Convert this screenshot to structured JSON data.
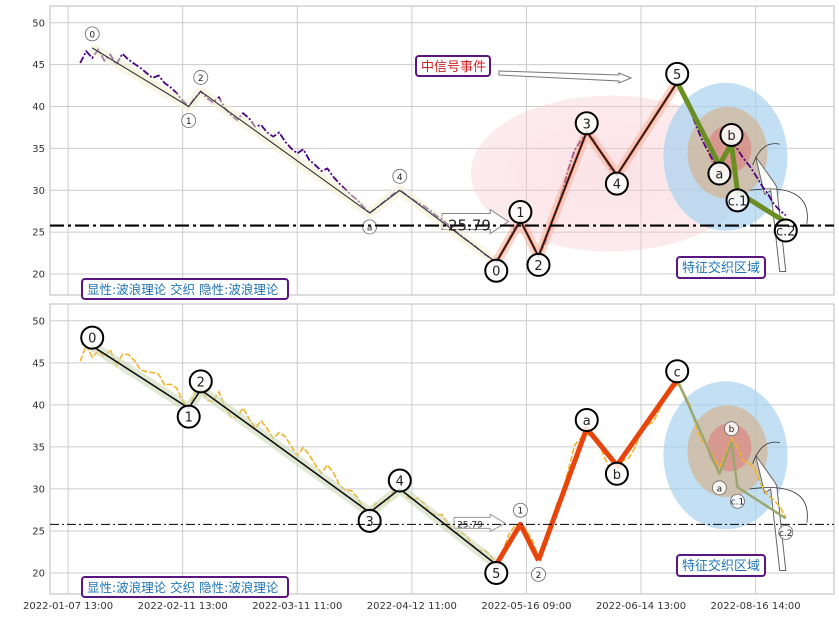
{
  "chart_data": {
    "type": "line",
    "x_tick_labels": [
      "2022-01-07 13:00",
      "2022-02-11 13:00",
      "2022-03-11 11:00",
      "2022-04-12 11:00",
      "2022-05-16 09:00",
      "2022-06-14 13:00",
      "2022-08-16 14:00"
    ],
    "y_ticks": [
      20,
      25,
      30,
      35,
      40,
      45,
      50
    ],
    "ylim": [
      17.5,
      52
    ],
    "grid": true,
    "reference_price": 25.79,
    "reference_price_label": "25.79",
    "panels": [
      {
        "id": "top",
        "legend_text": "显性:波浪理论 交织 隐性:波浪理论",
        "annotation_event": "中信号事件",
        "annotation_zone": "特征交织区域",
        "price_series_color": "#4b0082",
        "price_series": [
          [
            0,
            45.2
          ],
          [
            2,
            46.6
          ],
          [
            4,
            45.8
          ],
          [
            6,
            46.8
          ],
          [
            8,
            45.5
          ],
          [
            10,
            46.2
          ],
          [
            12,
            45.0
          ],
          [
            14,
            46.3
          ],
          [
            16,
            45.6
          ],
          [
            18,
            45.1
          ],
          [
            20,
            44.6
          ],
          [
            22,
            44.0
          ],
          [
            24,
            43.4
          ],
          [
            26,
            43.7
          ],
          [
            28,
            42.8
          ],
          [
            30,
            42.3
          ],
          [
            32,
            41.6
          ],
          [
            34,
            40.7
          ],
          [
            36,
            40.0
          ],
          [
            38,
            41.0
          ],
          [
            40,
            41.8
          ],
          [
            42,
            41.0
          ],
          [
            44,
            40.5
          ],
          [
            46,
            41.1
          ],
          [
            48,
            39.8
          ],
          [
            50,
            39.0
          ],
          [
            52,
            38.4
          ],
          [
            54,
            39.2
          ],
          [
            56,
            38.6
          ],
          [
            58,
            37.6
          ],
          [
            60,
            37.8
          ],
          [
            62,
            36.9
          ],
          [
            64,
            36.4
          ],
          [
            66,
            36.9
          ],
          [
            68,
            35.8
          ],
          [
            70,
            35.0
          ],
          [
            72,
            34.4
          ],
          [
            74,
            34.9
          ],
          [
            76,
            33.6
          ],
          [
            78,
            33.0
          ],
          [
            80,
            32.3
          ],
          [
            82,
            32.6
          ],
          [
            84,
            31.6
          ],
          [
            86,
            30.8
          ],
          [
            88,
            30.1
          ],
          [
            90,
            29.4
          ],
          [
            92,
            28.8
          ],
          [
            94,
            28.0
          ],
          [
            96,
            27.3
          ],
          [
            98,
            27.8
          ],
          [
            100,
            28.4
          ],
          [
            102,
            29.0
          ],
          [
            104,
            29.6
          ],
          [
            106,
            30.0
          ],
          [
            108,
            29.5
          ],
          [
            110,
            29.0
          ],
          [
            112,
            28.5
          ],
          [
            114,
            28.1
          ],
          [
            116,
            27.6
          ],
          [
            118,
            27.0
          ],
          [
            120,
            26.5
          ],
          [
            122,
            25.9
          ],
          [
            124,
            25.3
          ],
          [
            126,
            24.7
          ],
          [
            128,
            24.1
          ],
          [
            130,
            23.6
          ],
          [
            132,
            23.0
          ],
          [
            134,
            22.4
          ],
          [
            136,
            21.9
          ],
          [
            138,
            21.4
          ],
          [
            140,
            22.6
          ],
          [
            142,
            24.0
          ],
          [
            144,
            25.5
          ],
          [
            146,
            26.4
          ],
          [
            148,
            25.0
          ],
          [
            150,
            23.4
          ],
          [
            152,
            22.1
          ],
          [
            154,
            23.5
          ],
          [
            156,
            25.6
          ],
          [
            158,
            27.8
          ],
          [
            160,
            30.0
          ],
          [
            162,
            32.6
          ],
          [
            164,
            34.8
          ],
          [
            166,
            35.9
          ],
          [
            168,
            37.0
          ],
          [
            170,
            36.2
          ],
          [
            172,
            35.0
          ],
          [
            174,
            33.8
          ],
          [
            176,
            32.5
          ],
          [
            178,
            31.8
          ],
          [
            180,
            33.0
          ],
          [
            182,
            34.0
          ],
          [
            184,
            35.2
          ],
          [
            186,
            36.3
          ],
          [
            188,
            37.4
          ],
          [
            190,
            38.4
          ],
          [
            192,
            39.4
          ],
          [
            194,
            40.5
          ],
          [
            196,
            41.7
          ],
          [
            198,
            42.9
          ],
          [
            200,
            41.4
          ],
          [
            202,
            39.8
          ],
          [
            204,
            38.0
          ],
          [
            206,
            36.2
          ],
          [
            208,
            34.8
          ],
          [
            210,
            33.5
          ],
          [
            212,
            33.0
          ],
          [
            214,
            34.2
          ],
          [
            216,
            35.6
          ],
          [
            218,
            34.9
          ],
          [
            220,
            33.8
          ],
          [
            222,
            32.9
          ],
          [
            224,
            31.8
          ],
          [
            226,
            30.6
          ],
          [
            228,
            29.6
          ],
          [
            230,
            28.4
          ],
          [
            232,
            27.6
          ],
          [
            234,
            27.0
          ]
        ],
        "wave_points": [
          {
            "label": "0",
            "x": 4,
            "y": 47.0
          },
          {
            "label": "1",
            "x": 36,
            "y": 40.0
          },
          {
            "label": "2",
            "x": 40,
            "y": 41.8
          },
          {
            "label": "a",
            "x": 96,
            "y": 27.3
          },
          {
            "label": "4",
            "x": 106,
            "y": 30.0
          },
          {
            "label": "0",
            "x": 138,
            "y": 21.4
          },
          {
            "label": "1",
            "x": 146,
            "y": 26.4
          },
          {
            "label": "2",
            "x": 152,
            "y": 22.1
          },
          {
            "label": "3",
            "x": 168,
            "y": 37.0
          },
          {
            "label": "4",
            "x": 178,
            "y": 31.8
          },
          {
            "label": "5",
            "x": 198,
            "y": 42.9
          },
          {
            "label": "a",
            "x": 212,
            "y": 33.0
          },
          {
            "label": "b",
            "x": 216,
            "y": 35.6
          },
          {
            "label": "c.1",
            "x": 218,
            "y": 29.8
          },
          {
            "label": "c.2",
            "x": 234,
            "y": 26.2
          }
        ]
      },
      {
        "id": "bottom",
        "legend_text": "显性:波浪理论 交织 隐性:波浪理论",
        "annotation_zone": "特征交织区域",
        "price_series_color": "#f0b429",
        "wave_points": [
          {
            "label": "0",
            "x": 4,
            "y": 47.0
          },
          {
            "label": "1",
            "x": 36,
            "y": 39.6
          },
          {
            "label": "2",
            "x": 40,
            "y": 41.8
          },
          {
            "label": "3",
            "x": 96,
            "y": 27.2
          },
          {
            "label": "4",
            "x": 106,
            "y": 30.0
          },
          {
            "label": "5",
            "x": 138,
            "y": 21.0
          },
          {
            "label": "1",
            "x": 146,
            "y": 25.8
          },
          {
            "label": "2",
            "x": 152,
            "y": 21.5
          },
          {
            "label": "a",
            "x": 168,
            "y": 37.2
          },
          {
            "label": "b",
            "x": 178,
            "y": 32.8
          },
          {
            "label": "c",
            "x": 198,
            "y": 43.0
          },
          {
            "label": "a",
            "x": 212,
            "y": 31.8
          },
          {
            "label": "b",
            "x": 216,
            "y": 35.5
          },
          {
            "label": "c.1",
            "x": 218,
            "y": 30.2
          },
          {
            "label": "c.2",
            "x": 234,
            "y": 26.5
          }
        ]
      }
    ]
  }
}
